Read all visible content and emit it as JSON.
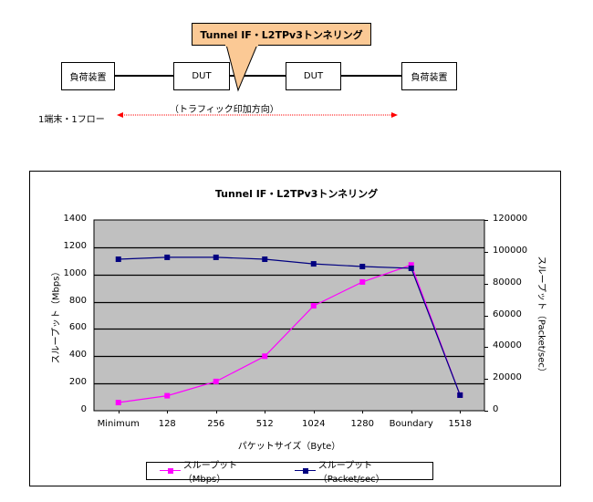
{
  "diagram": {
    "callout_label": "Tunnel IF・L2TPv3トンネリング",
    "callout_color": "#fbc995",
    "nodes": [
      {
        "label": "負荷装置"
      },
      {
        "label": "DUT"
      },
      {
        "label": "DUT"
      },
      {
        "label": "負荷装置"
      }
    ],
    "direction_label": "（トラフィック印加方向）",
    "flow_label": "1端末・1フロー",
    "arrow_color": "#ff0000"
  },
  "chart_data": {
    "type": "line",
    "title": "Tunnel IF・L2TPv3トンネリング",
    "xlabel": "パケットサイズ（Byte）",
    "ylabel": "スループット（Mbps）",
    "y2label": "スループット（Packet/sec）",
    "categories": [
      "Minimum",
      "128",
      "256",
      "512",
      "1024",
      "1280",
      "Boundary",
      "1518"
    ],
    "ylim": [
      0,
      1400
    ],
    "y_ticks": [
      "0",
      "200",
      "400",
      "600",
      "800",
      "1000",
      "1200",
      "1400"
    ],
    "y2lim": [
      0,
      120000
    ],
    "y2_ticks": [
      "0",
      "20000",
      "40000",
      "60000",
      "80000",
      "100000",
      "120000"
    ],
    "grid": true,
    "plot_background": "#c0c0c0",
    "legend_position": "bottom",
    "series": [
      {
        "name": "スループット（Mbps）",
        "axis": "left",
        "color": "#ff00ff",
        "values": [
          60,
          110,
          215,
          400,
          770,
          945,
          1070,
          115
        ]
      },
      {
        "name": "スループット（Packet/sec）",
        "axis": "right",
        "color": "#000080",
        "values": [
          95300,
          96500,
          96500,
          95300,
          92400,
          90700,
          89600,
          9800
        ]
      }
    ]
  }
}
